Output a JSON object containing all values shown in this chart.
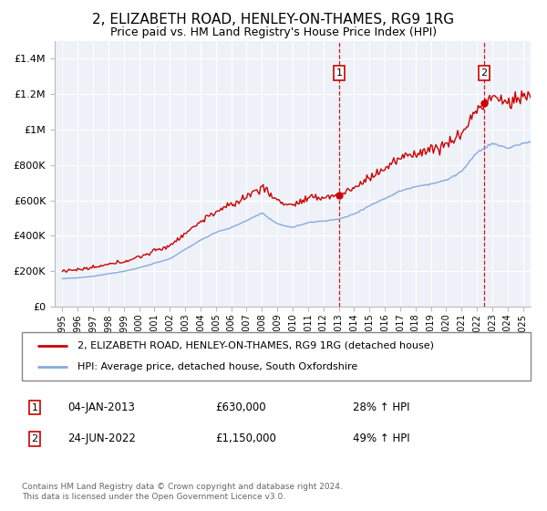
{
  "title": "2, ELIZABETH ROAD, HENLEY-ON-THAMES, RG9 1RG",
  "subtitle": "Price paid vs. HM Land Registry's House Price Index (HPI)",
  "title_fontsize": 11,
  "subtitle_fontsize": 9,
  "plot_bg_color": "#eef2f8",
  "grid_color": "#ffffff",
  "xlim": [
    1994.5,
    2025.5
  ],
  "ylim": [
    0,
    1500000
  ],
  "yticks": [
    0,
    200000,
    400000,
    600000,
    800000,
    1000000,
    1200000,
    1400000
  ],
  "ytick_labels": [
    "£0",
    "£200K",
    "£400K",
    "£600K",
    "£800K",
    "£1M",
    "£1.2M",
    "£1.4M"
  ],
  "xtick_years": [
    1995,
    1996,
    1997,
    1998,
    1999,
    2000,
    2001,
    2002,
    2003,
    2004,
    2005,
    2006,
    2007,
    2008,
    2009,
    2010,
    2011,
    2012,
    2013,
    2014,
    2015,
    2016,
    2017,
    2018,
    2019,
    2020,
    2021,
    2022,
    2023,
    2024,
    2025
  ],
  "sale1_x": 2013.02,
  "sale1_y": 630000,
  "sale2_x": 2022.48,
  "sale2_y": 1150000,
  "red_line_color": "#cc0000",
  "blue_line_color": "#88aadd",
  "legend_label_red": "2, ELIZABETH ROAD, HENLEY-ON-THAMES, RG9 1RG (detached house)",
  "legend_label_blue": "HPI: Average price, detached house, South Oxfordshire",
  "note1_date": "04-JAN-2013",
  "note1_price": "£630,000",
  "note1_hpi": "28% ↑ HPI",
  "note2_date": "24-JUN-2022",
  "note2_price": "£1,150,000",
  "note2_hpi": "49% ↑ HPI",
  "footer": "Contains HM Land Registry data © Crown copyright and database right 2024.\nThis data is licensed under the Open Government Licence v3.0."
}
